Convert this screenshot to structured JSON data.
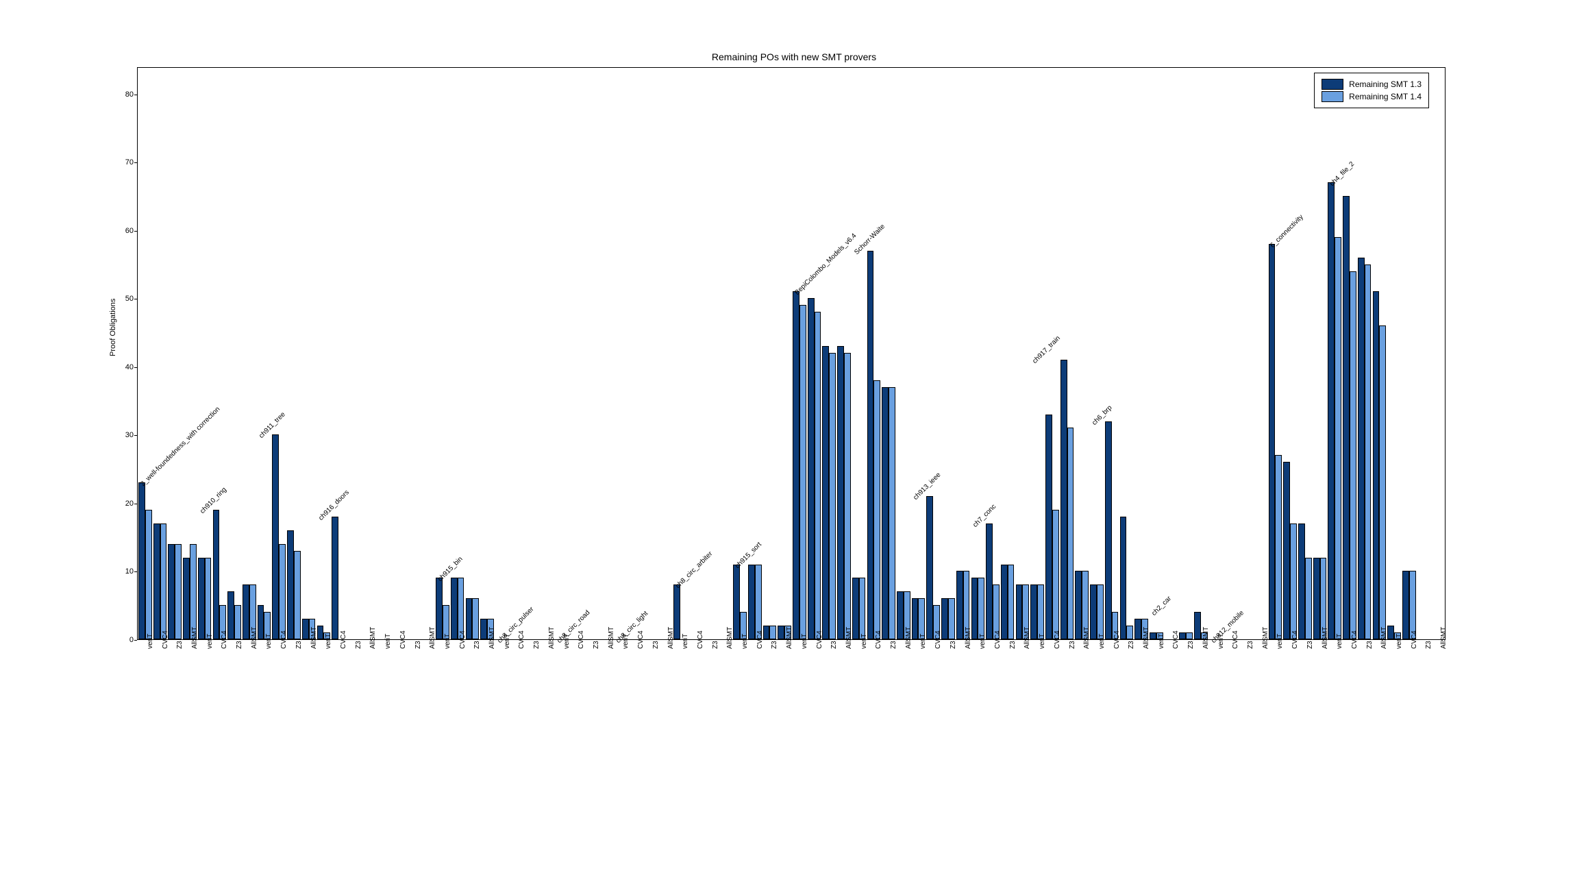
{
  "chart": {
    "title": "Remaining POs with new SMT provers",
    "ylabel": "Proof Obligations",
    "ylim": [
      0,
      84
    ],
    "ytick_positions": [
      0,
      10,
      20,
      30,
      40,
      50,
      60,
      70,
      80
    ],
    "title_fontsize": 14,
    "label_fontsize": 11,
    "tick_fontsize": 10,
    "background_color": "#ffffff",
    "plot_border_color": "#000000",
    "series": [
      {
        "name": "Remaining SMT 1.3",
        "color": "#0d3c78"
      },
      {
        "name": "Remaining SMT 1.4",
        "color": "#6aa0e0"
      }
    ],
    "bar_labels": [
      "veriT",
      "CVC4",
      "Z3",
      "AllSMT"
    ],
    "groups": [
      {
        "label": "2_well-foundedness_with correction"
      },
      {
        "label": "ch910_ring"
      },
      {
        "label": "ch911_tree"
      },
      {
        "label": "ch916_doors"
      },
      {
        "label": ""
      },
      {
        "label": "ch915_bin"
      },
      {
        "label": "ch8_circ_pulser"
      },
      {
        "label": "ch8_circ_road"
      },
      {
        "label": "ch8_circ_light"
      },
      {
        "label": "ch8_circ_arbiter"
      },
      {
        "label": "ch915_sort"
      },
      {
        "label": "BepiColombo_Models_v6.4"
      },
      {
        "label": "Schorr-Waite"
      },
      {
        "label": "ch913_ieee"
      },
      {
        "label": "ch7_conc"
      },
      {
        "label": "ch917_train"
      },
      {
        "label": "ch6_brp"
      },
      {
        "label": "ch2_car"
      },
      {
        "label": "ch912_mobile"
      },
      {
        "label": "6_connectivity"
      },
      {
        "label": "ch4_file_2"
      },
      {
        "label": ""
      }
    ],
    "bars": [
      {
        "v": [
          23,
          19
        ]
      },
      {
        "v": [
          17,
          17
        ]
      },
      {
        "v": [
          14,
          14
        ]
      },
      {
        "v": [
          12,
          14
        ]
      },
      {
        "v": [
          12,
          12
        ]
      },
      {
        "v": [
          19,
          5
        ]
      },
      {
        "v": [
          7,
          5
        ]
      },
      {
        "v": [
          8,
          8
        ]
      },
      {
        "v": [
          5,
          4
        ]
      },
      {
        "v": [
          30,
          14
        ]
      },
      {
        "v": [
          16,
          13
        ]
      },
      {
        "v": [
          3,
          3
        ]
      },
      {
        "v": [
          2,
          1
        ]
      },
      {
        "v": [
          18,
          0
        ]
      },
      {
        "v": [
          0,
          0
        ]
      },
      {
        "v": [
          0,
          0
        ]
      },
      {
        "v": [
          0,
          0
        ]
      },
      {
        "v": [
          0,
          0
        ]
      },
      {
        "v": [
          0,
          0
        ]
      },
      {
        "v": [
          0,
          0
        ]
      },
      {
        "v": [
          9,
          5
        ]
      },
      {
        "v": [
          9,
          9
        ]
      },
      {
        "v": [
          6,
          6
        ]
      },
      {
        "v": [
          3,
          3
        ]
      },
      {
        "v": [
          0,
          0
        ]
      },
      {
        "v": [
          0,
          0
        ]
      },
      {
        "v": [
          0,
          0
        ]
      },
      {
        "v": [
          0,
          0
        ]
      },
      {
        "v": [
          0,
          0
        ]
      },
      {
        "v": [
          0,
          0
        ]
      },
      {
        "v": [
          0,
          0
        ]
      },
      {
        "v": [
          0,
          0
        ]
      },
      {
        "v": [
          0,
          0
        ]
      },
      {
        "v": [
          0,
          0
        ]
      },
      {
        "v": [
          0,
          0
        ]
      },
      {
        "v": [
          0,
          0
        ]
      },
      {
        "v": [
          8,
          0
        ]
      },
      {
        "v": [
          0,
          0
        ]
      },
      {
        "v": [
          0,
          0
        ]
      },
      {
        "v": [
          0,
          0
        ]
      },
      {
        "v": [
          11,
          4
        ]
      },
      {
        "v": [
          11,
          11
        ]
      },
      {
        "v": [
          2,
          2
        ]
      },
      {
        "v": [
          2,
          2
        ]
      },
      {
        "v": [
          51,
          49
        ]
      },
      {
        "v": [
          50,
          48
        ]
      },
      {
        "v": [
          43,
          42
        ]
      },
      {
        "v": [
          43,
          42
        ]
      },
      {
        "v": [
          9,
          9
        ]
      },
      {
        "v": [
          57,
          38
        ]
      },
      {
        "v": [
          37,
          37
        ]
      },
      {
        "v": [
          7,
          7
        ]
      },
      {
        "v": [
          6,
          6
        ]
      },
      {
        "v": [
          21,
          5
        ]
      },
      {
        "v": [
          6,
          6
        ]
      },
      {
        "v": [
          10,
          10
        ]
      },
      {
        "v": [
          9,
          9
        ]
      },
      {
        "v": [
          17,
          8
        ]
      },
      {
        "v": [
          11,
          11
        ]
      },
      {
        "v": [
          8,
          8
        ]
      },
      {
        "v": [
          8,
          8
        ]
      },
      {
        "v": [
          33,
          19
        ]
      },
      {
        "v": [
          41,
          31
        ]
      },
      {
        "v": [
          10,
          10
        ]
      },
      {
        "v": [
          8,
          8
        ]
      },
      {
        "v": [
          32,
          4
        ]
      },
      {
        "v": [
          18,
          2
        ]
      },
      {
        "v": [
          3,
          3
        ]
      },
      {
        "v": [
          1,
          1
        ]
      },
      {
        "v": [
          0,
          0
        ]
      },
      {
        "v": [
          1,
          1
        ]
      },
      {
        "v": [
          4,
          1
        ]
      },
      {
        "v": [
          0,
          0
        ]
      },
      {
        "v": [
          0,
          0
        ]
      },
      {
        "v": [
          0,
          0
        ]
      },
      {
        "v": [
          0,
          0
        ]
      },
      {
        "v": [
          58,
          27
        ]
      },
      {
        "v": [
          26,
          17
        ]
      },
      {
        "v": [
          17,
          12
        ]
      },
      {
        "v": [
          12,
          12
        ]
      },
      {
        "v": [
          67,
          59
        ]
      },
      {
        "v": [
          65,
          54
        ]
      },
      {
        "v": [
          56,
          55
        ]
      },
      {
        "v": [
          51,
          46
        ]
      },
      {
        "v": [
          2,
          1
        ]
      },
      {
        "v": [
          10,
          10
        ]
      },
      {
        "v": [
          0,
          0
        ]
      },
      {
        "v": [
          0,
          0
        ]
      }
    ],
    "legend": {
      "items": [
        {
          "label": "Remaining SMT 1.3",
          "color": "#0d3c78"
        },
        {
          "label": "Remaining SMT 1.4",
          "color": "#6aa0e0"
        }
      ]
    }
  }
}
